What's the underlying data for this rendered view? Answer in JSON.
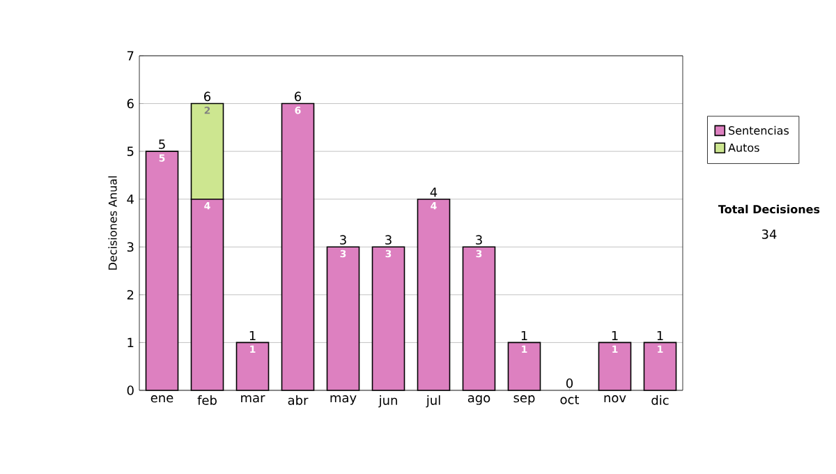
{
  "chart_data": {
    "type": "bar",
    "stacked": true,
    "ylabel": "Decisiones Anual",
    "categories": [
      "ene",
      "feb",
      "mar",
      "abr",
      "may",
      "jun",
      "jul",
      "ago",
      "sep",
      "oct",
      "nov",
      "dic"
    ],
    "series": [
      {
        "name": "Sentencias",
        "color": "#dd80c0",
        "values": [
          5,
          4,
          1,
          6,
          3,
          3,
          4,
          3,
          1,
          0,
          1,
          1
        ],
        "value_labels": [
          "5",
          "4",
          "1",
          "6",
          "3",
          "3",
          "4",
          "3",
          "1",
          null,
          "1",
          "1"
        ]
      },
      {
        "name": "Autos",
        "color": "#cde690",
        "values": [
          0,
          2,
          0,
          0,
          0,
          0,
          0,
          0,
          0,
          0,
          0,
          0
        ],
        "value_labels": [
          null,
          "2",
          null,
          null,
          null,
          null,
          null,
          null,
          null,
          null,
          null,
          null
        ]
      }
    ],
    "totals": [
      "5",
      "6",
      "1",
      "6",
      "3",
      "3",
      "4",
      "3",
      "1",
      "0",
      "1",
      "1"
    ],
    "ylim": [
      0,
      7
    ],
    "yticks": [
      0,
      1,
      2,
      3,
      4,
      5,
      6,
      7
    ],
    "grid": "y",
    "legend": "right",
    "annotations": [
      "Total Decisiones",
      "34"
    ]
  }
}
